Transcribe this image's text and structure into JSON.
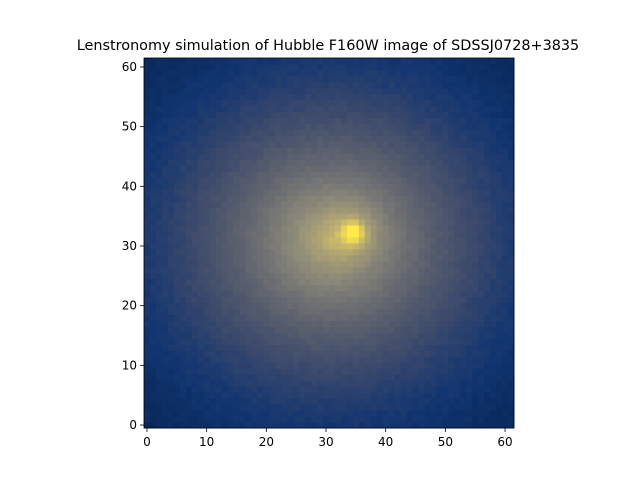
{
  "chart_data": {
    "type": "heatmap",
    "title": "Lenstronomy simulation of Hubble F160W image of SDSSJ0728+3835",
    "xlabel": "",
    "ylabel": "",
    "xlim": [
      -0.5,
      61.5
    ],
    "ylim": [
      -0.5,
      61.5
    ],
    "xticks": [
      0,
      10,
      20,
      30,
      40,
      50,
      60
    ],
    "yticks": [
      0,
      10,
      20,
      30,
      40,
      50,
      60
    ],
    "grid": false,
    "origin": "lower",
    "shape": [
      62,
      62
    ],
    "colormap": "cividis",
    "colormap_stops": [
      "#00204d",
      "#123570",
      "#3b496c",
      "#575d6d",
      "#707173",
      "#8a8779",
      "#a69d75",
      "#c4b56c",
      "#e4cf5b",
      "#ffea46"
    ],
    "sources": [
      {
        "name": "galaxy core",
        "x": 34.5,
        "y": 32.3,
        "peak": 1.0
      },
      {
        "name": "diffuse halo",
        "x": 31.0,
        "y": 31.0,
        "extent": 30
      }
    ]
  }
}
